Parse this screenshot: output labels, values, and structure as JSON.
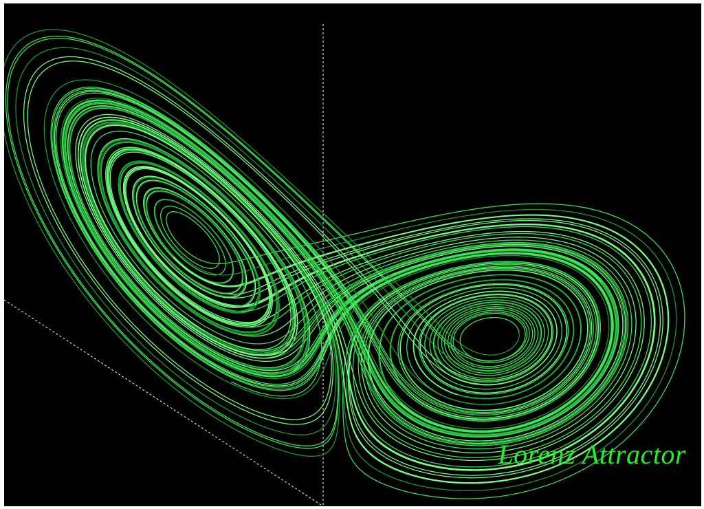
{
  "title": "Lorenz Attractor",
  "colors": {
    "background": "#000000",
    "frame": "#ffffff",
    "trajectory_bright": "#7dff8a",
    "trajectory_mid": "#3ee65a",
    "trajectory_dark": "#1a9e2e",
    "axis": "#d8d8d8",
    "title": "#22ee2a"
  },
  "attractor": {
    "system": "lorenz",
    "sigma": 10,
    "rho": 28,
    "beta": 2.6667
  },
  "axes": [
    {
      "name": "vertical-axis",
      "style": "dotted"
    },
    {
      "name": "diagonal-axis",
      "style": "dotted"
    }
  ]
}
